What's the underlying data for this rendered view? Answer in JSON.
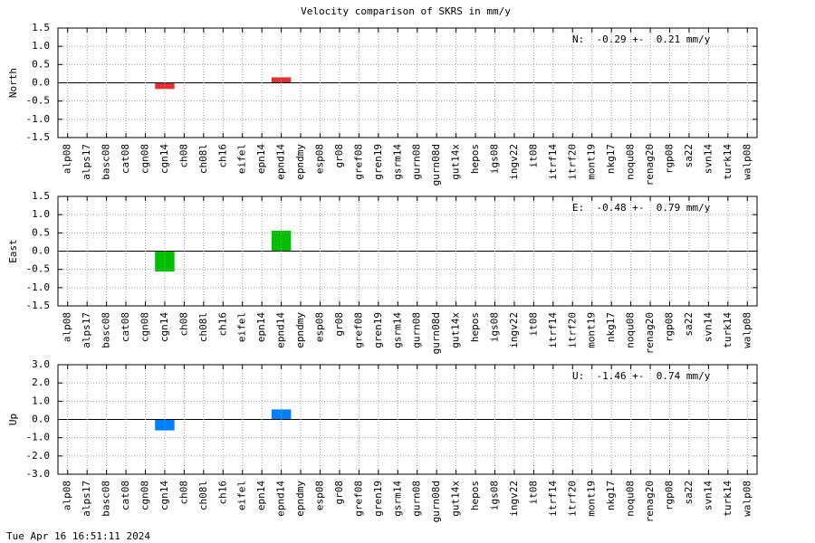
{
  "title": "Velocity comparison of SKRS in mm/y",
  "timestamp": "Tue Apr 16 16:51:11 2024",
  "chart_data": [
    {
      "type": "bar",
      "ylabel": "North",
      "annotation": "N:  -0.29 +-  0.21 mm/y",
      "color": "#e03030",
      "grid": true,
      "categories": [
        "alp08",
        "alps17",
        "basc08",
        "cat08",
        "cgn08",
        "cgn14",
        "ch08",
        "ch08l",
        "ch16",
        "eifel",
        "epn14",
        "epnd14",
        "epndmy",
        "esp08",
        "gr08",
        "gref08",
        "gren19",
        "gsrm14",
        "gurn08",
        "gurn08d",
        "gut14x",
        "hepos",
        "igs08",
        "ingv22",
        "it08",
        "itrf14",
        "itrf20",
        "mont19",
        "nkg17",
        "noqu08",
        "renag20",
        "rgp08",
        "sa22",
        "svn14",
        "turk14",
        "walp08"
      ],
      "values": [
        null,
        null,
        null,
        null,
        null,
        -0.17,
        null,
        null,
        null,
        null,
        null,
        0.15,
        null,
        null,
        null,
        null,
        null,
        null,
        null,
        null,
        null,
        null,
        null,
        null,
        null,
        null,
        null,
        null,
        null,
        null,
        null,
        null,
        null,
        null,
        null,
        null
      ],
      "ylim": [
        -1.5,
        1.5
      ],
      "yticks": [
        1.5,
        {
          "value": 1,
          "label": "1.0"
        },
        0.5,
        {
          "value": 0,
          "label": "0.0"
        },
        -0.5,
        {
          "value": -1,
          "label": "-1.0"
        },
        -1.5
      ]
    },
    {
      "type": "bar",
      "ylabel": "East",
      "annotation": "E:  -0.48 +-  0.79 mm/y",
      "color": "#00c000",
      "grid": true,
      "categories": [
        "alp08",
        "alps17",
        "basc08",
        "cat08",
        "cgn08",
        "cgn14",
        "ch08",
        "ch08l",
        "ch16",
        "eifel",
        "epn14",
        "epnd14",
        "epndmy",
        "esp08",
        "gr08",
        "gref08",
        "gren19",
        "gsrm14",
        "gurn08",
        "gurn08d",
        "gut14x",
        "hepos",
        "igs08",
        "ingv22",
        "it08",
        "itrf14",
        "itrf20",
        "mont19",
        "nkg17",
        "noqu08",
        "renag20",
        "rgp08",
        "sa22",
        "svn14",
        "turk14",
        "walp08"
      ],
      "values": [
        null,
        null,
        null,
        null,
        null,
        -0.56,
        null,
        null,
        null,
        null,
        null,
        0.56,
        null,
        null,
        null,
        null,
        null,
        null,
        null,
        null,
        null,
        null,
        null,
        null,
        null,
        null,
        null,
        null,
        null,
        null,
        null,
        null,
        null,
        null,
        null,
        null
      ],
      "ylim": [
        -1.5,
        1.5
      ],
      "yticks": [
        1.5,
        {
          "value": 1,
          "label": "1.0"
        },
        0.5,
        {
          "value": 0,
          "label": "0.0"
        },
        -0.5,
        {
          "value": -1,
          "label": "-1.0"
        },
        -1.5
      ]
    },
    {
      "type": "bar",
      "ylabel": "Up",
      "annotation": "U:  -1.46 +-  0.74 mm/y",
      "color": "#0080ff",
      "grid": true,
      "categories": [
        "alp08",
        "alps17",
        "basc08",
        "cat08",
        "cgn08",
        "cgn14",
        "ch08",
        "ch08l",
        "ch16",
        "eifel",
        "epn14",
        "epnd14",
        "epndmy",
        "esp08",
        "gr08",
        "gref08",
        "gren19",
        "gsrm14",
        "gurn08",
        "gurn08d",
        "gut14x",
        "hepos",
        "igs08",
        "ingv22",
        "it08",
        "itrf14",
        "itrf20",
        "mont19",
        "nkg17",
        "noqu08",
        "renag20",
        "rgp08",
        "sa22",
        "svn14",
        "turk14",
        "walp08"
      ],
      "values": [
        null,
        null,
        null,
        null,
        null,
        -0.6,
        null,
        null,
        null,
        null,
        null,
        0.55,
        null,
        null,
        null,
        null,
        null,
        null,
        null,
        null,
        null,
        null,
        null,
        null,
        null,
        null,
        null,
        null,
        null,
        null,
        null,
        null,
        null,
        null,
        null,
        null
      ],
      "ylim": [
        -3,
        3
      ],
      "yticks": [
        {
          "value": 3,
          "label": "3.0"
        },
        {
          "value": 2,
          "label": "2.0"
        },
        {
          "value": 1,
          "label": "1.0"
        },
        {
          "value": 0,
          "label": "0.0"
        },
        {
          "value": -1,
          "label": "-1.0"
        },
        {
          "value": -2,
          "label": "-2.0"
        },
        {
          "value": -3,
          "label": "-3.0"
        }
      ]
    }
  ]
}
